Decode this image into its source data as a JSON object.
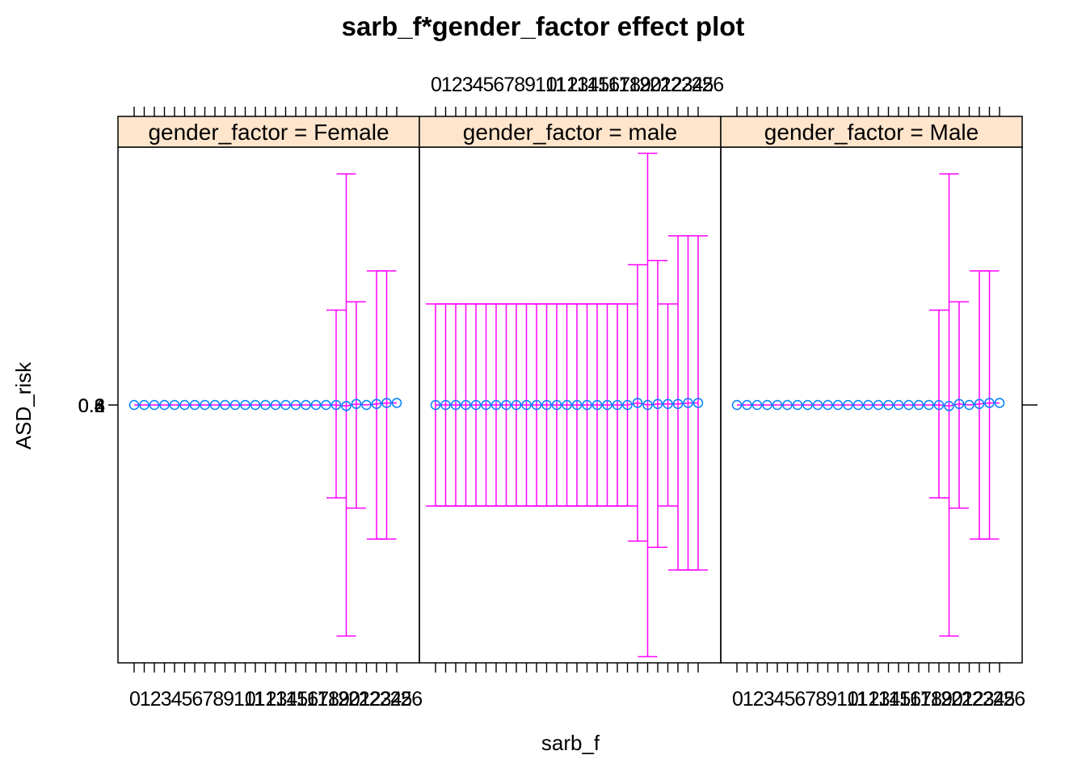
{
  "chart_data": {
    "type": "scatter",
    "title": "sarb_f*gender_factor effect plot",
    "xlabel": "sarb_f",
    "ylabel": "ASD_risk",
    "x": [
      "0",
      "1",
      "2",
      "3",
      "4",
      "5",
      "6",
      "7",
      "8",
      "9",
      "10",
      "11",
      "12",
      "13",
      "14",
      "15",
      "16",
      "17",
      "18",
      "19",
      "20",
      "21",
      "22",
      "23",
      "24",
      "25",
      "26"
    ],
    "ylim": [
      -1.25,
      1.25
    ],
    "y_tick_labels": [
      "0.2",
      "0.4",
      "0.6",
      "0.8"
    ],
    "strip_fill": "#ffe5cc",
    "point_color": "#0080ff",
    "errorbar_color": "#ff00ff",
    "panels": [
      {
        "strip": "gender_factor = Female",
        "x_tick_labels_position": "bottom",
        "estimates": [
          0,
          0,
          0,
          0,
          0,
          0,
          0,
          0,
          0,
          0,
          0,
          0,
          0,
          0,
          0,
          0,
          0,
          0,
          0,
          0,
          0,
          -0.005,
          0.005,
          0,
          0.005,
          0.01,
          0.01
        ],
        "lower": [
          0,
          0,
          0,
          0,
          0,
          0,
          0,
          0,
          0,
          0,
          0,
          0,
          0,
          0,
          0,
          0,
          0,
          0,
          0,
          0,
          -0.45,
          -1.12,
          -0.5,
          0,
          -0.65,
          -0.65,
          0
        ],
        "upper": [
          0,
          0,
          0,
          0,
          0,
          0,
          0,
          0,
          0,
          0,
          0,
          0,
          0,
          0,
          0,
          0,
          0,
          0,
          0,
          0,
          0.46,
          1.12,
          0.5,
          0,
          0.65,
          0.65,
          0
        ]
      },
      {
        "strip": "gender_factor = male",
        "x_tick_labels_position": "top",
        "estimates": [
          0,
          0,
          0,
          0,
          0,
          0,
          0,
          0,
          0,
          0,
          0,
          0,
          0,
          0,
          0,
          0,
          0,
          0,
          0,
          0,
          0.01,
          0,
          0.005,
          0.005,
          0.005,
          0.01,
          0.01
        ],
        "lower": [
          -0.49,
          -0.49,
          -0.49,
          -0.49,
          -0.49,
          -0.49,
          -0.49,
          -0.49,
          -0.49,
          -0.49,
          -0.49,
          -0.49,
          -0.49,
          -0.49,
          -0.49,
          -0.49,
          -0.49,
          -0.49,
          -0.49,
          -0.49,
          -0.66,
          -1.22,
          -0.69,
          -0.49,
          -0.8,
          -0.8,
          -0.8
        ],
        "upper": [
          0.49,
          0.49,
          0.49,
          0.49,
          0.49,
          0.49,
          0.49,
          0.49,
          0.49,
          0.49,
          0.49,
          0.49,
          0.49,
          0.49,
          0.49,
          0.49,
          0.49,
          0.49,
          0.49,
          0.49,
          0.68,
          1.22,
          0.7,
          0.49,
          0.82,
          0.82,
          0.82
        ]
      },
      {
        "strip": "gender_factor = Male",
        "x_tick_labels_position": "bottom",
        "estimates": [
          0,
          0,
          0,
          0,
          0,
          0,
          0,
          0,
          0,
          0,
          0,
          0,
          0,
          0,
          0,
          0,
          0,
          0,
          0,
          0,
          0,
          -0.005,
          0.005,
          0,
          0.005,
          0.01,
          0.01
        ],
        "lower": [
          0,
          0,
          0,
          0,
          0,
          0,
          0,
          0,
          0,
          0,
          0,
          0,
          0,
          0,
          0,
          0,
          0,
          0,
          0,
          0,
          -0.45,
          -1.12,
          -0.5,
          0,
          -0.65,
          -0.65,
          0
        ],
        "upper": [
          0,
          0,
          0,
          0,
          0,
          0,
          0,
          0,
          0,
          0,
          0,
          0,
          0,
          0,
          0,
          0,
          0,
          0,
          0,
          0,
          0.46,
          1.12,
          0.5,
          0,
          0.65,
          0.65,
          0
        ]
      }
    ]
  }
}
